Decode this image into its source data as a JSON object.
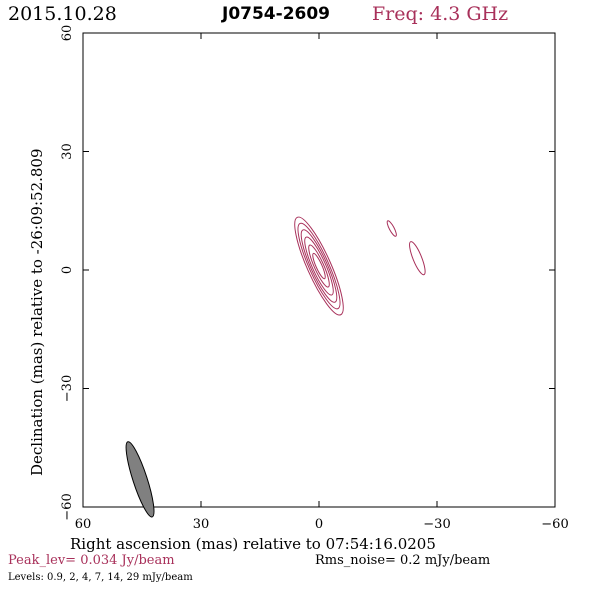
{
  "header": {
    "date": "2015.10.28",
    "source": "J0754-2609",
    "freq": "Freq: 4.3 GHz"
  },
  "colors": {
    "contour": "#a8305a",
    "text_accent": "#a8305a",
    "beam_fill": "#808080"
  },
  "chart_data": {
    "type": "contour",
    "xlabel": "Right ascension (mas) relative to 07:54:16.0205",
    "ylabel": "Declination (mas) relative to -26:09:52.809",
    "xlim": [
      60,
      -60
    ],
    "ylim": [
      -60,
      60
    ],
    "x_ticks": [
      60,
      30,
      0,
      -30,
      -60
    ],
    "y_ticks": [
      -60,
      -30,
      0,
      30,
      60
    ],
    "x_tick_labels": [
      "60",
      "30",
      "0",
      "−30",
      "−60"
    ],
    "y_tick_labels": [
      "−60",
      "−30",
      "0",
      "30",
      "60"
    ],
    "beam": {
      "x": 45.5,
      "y": -53,
      "major": 10,
      "minor": 1.8,
      "pa_deg": -18
    },
    "components": [
      {
        "name": "core",
        "x": 0,
        "y": 1,
        "pa_deg": -24,
        "contours": [
          {
            "major": 13.5,
            "minor": 3.0
          },
          {
            "major": 11.8,
            "minor": 2.5
          },
          {
            "major": 10.0,
            "minor": 2.1
          },
          {
            "major": 8.0,
            "minor": 1.7
          },
          {
            "major": 5.8,
            "minor": 1.2
          },
          {
            "major": 3.5,
            "minor": 0.75
          }
        ]
      },
      {
        "name": "knot-1",
        "x": -18.5,
        "y": 10.5,
        "pa_deg": -28,
        "contours": [
          {
            "major": 2.2,
            "minor": 0.6
          }
        ]
      },
      {
        "name": "knot-2",
        "x": -25,
        "y": 3,
        "pa_deg": -22,
        "contours": [
          {
            "major": 4.5,
            "minor": 1.1
          }
        ]
      }
    ]
  },
  "footer": {
    "peak": "Peak_lev=  0.034 Jy/beam",
    "rms": "Rms_noise=   0.2 mJy/beam",
    "levels": "Levels: 0.9,    2,    4,    7,   14,   29 mJy/beam"
  }
}
